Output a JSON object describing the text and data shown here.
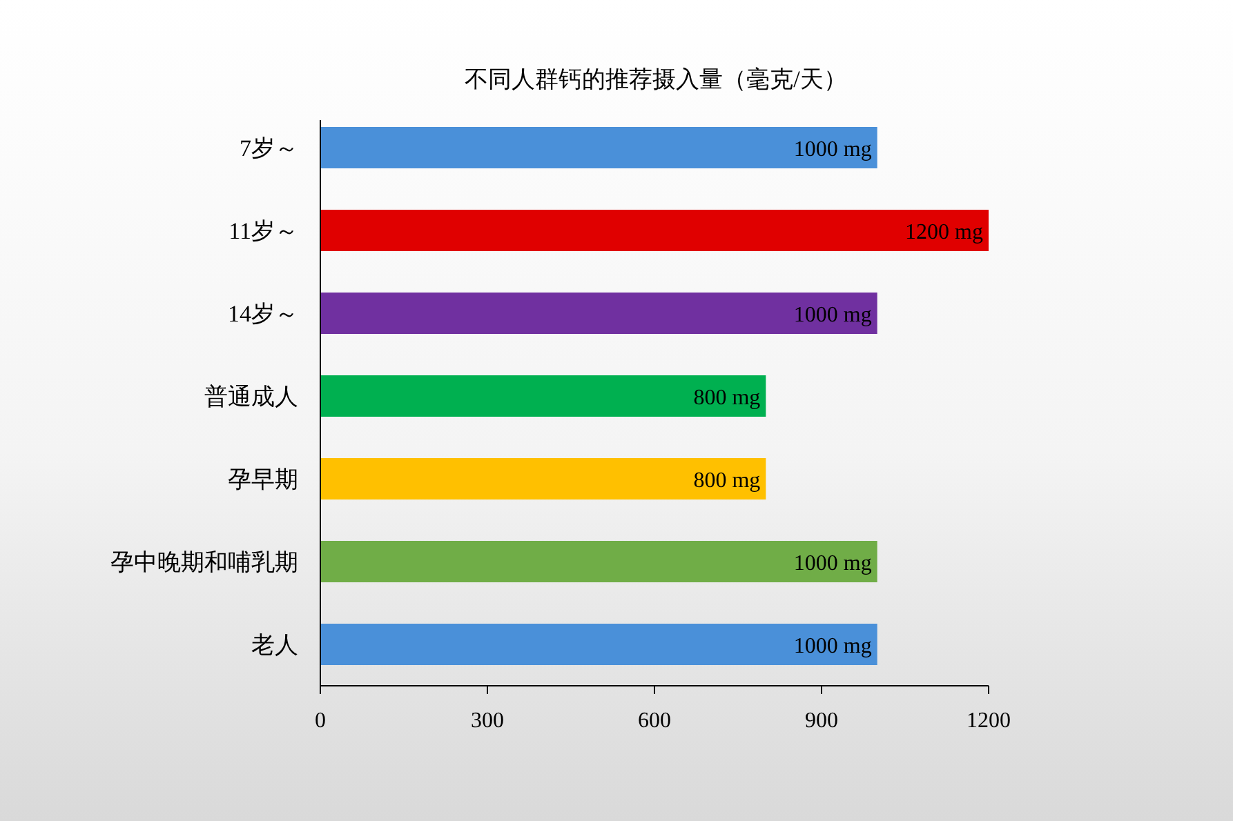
{
  "chart_data": {
    "type": "bar",
    "orientation": "horizontal",
    "title": "不同人群钙的推荐摄入量（毫克/天）",
    "categories": [
      "7岁～",
      "11岁～",
      "14岁～",
      "普通成人",
      "孕早期",
      "孕中晚期和哺乳期",
      "老人"
    ],
    "values": [
      1000,
      1200,
      1000,
      800,
      800,
      1000,
      1000
    ],
    "colors": [
      "#4a90d9",
      "#e00000",
      "#7030a0",
      "#00b050",
      "#ffc000",
      "#70ad47",
      "#4a90d9"
    ],
    "value_labels": [
      "1000 mg",
      "1200 mg",
      "1000 mg",
      "800 mg",
      "800 mg",
      "1000 mg",
      "1000 mg"
    ],
    "xlim": [
      0,
      1200
    ],
    "xticks": [
      0,
      300,
      600,
      900,
      1200
    ]
  }
}
